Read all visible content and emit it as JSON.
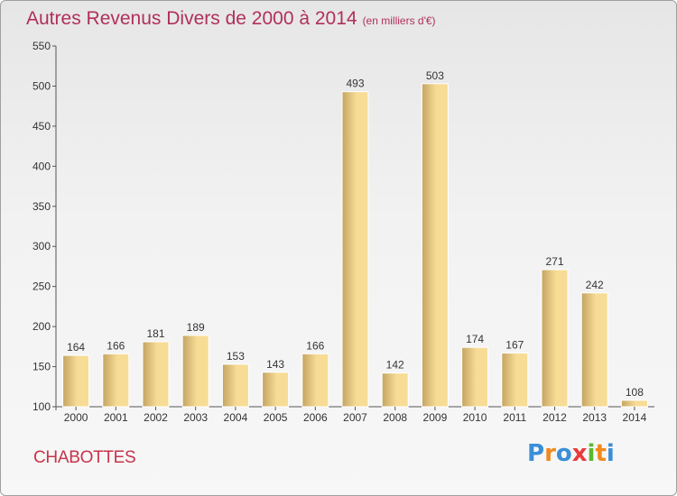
{
  "title": "Autres Revenus Divers de 2000 à 2014",
  "subtitle": "(en milliers d'€)",
  "commune": "CHABOTTES",
  "logo": {
    "text": "Proxiti",
    "letters": [
      "P",
      "r",
      "o",
      "x",
      "i",
      "t",
      "i"
    ],
    "colors": [
      "#3a8fd8",
      "#f08a1e",
      "#3a8fd8",
      "#e83a3a",
      "#5cb82e",
      "#f08a1e",
      "#3a8fd8"
    ]
  },
  "colors": {
    "title": "#b0305a",
    "bar_light": "#f7dc96",
    "bar_dark": "#c4a462",
    "axis": "#555555"
  },
  "chart_data": {
    "type": "bar",
    "title": "Autres Revenus Divers de 2000 à 2014",
    "subtitle": "(en milliers d'€)",
    "categories": [
      "2000",
      "2001",
      "2002",
      "2003",
      "2004",
      "2005",
      "2006",
      "2007",
      "2008",
      "2009",
      "2010",
      "2011",
      "2012",
      "2013",
      "2014"
    ],
    "values": [
      164,
      166,
      181,
      189,
      153,
      143,
      166,
      493,
      142,
      503,
      174,
      167,
      271,
      242,
      108
    ],
    "ylim": [
      100,
      550
    ],
    "yticks": [
      100,
      150,
      200,
      250,
      300,
      350,
      400,
      450,
      500,
      550
    ],
    "grid": false,
    "data_labels": true
  }
}
